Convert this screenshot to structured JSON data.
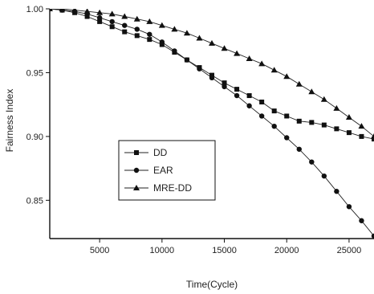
{
  "chart_data": {
    "type": "line",
    "title": "",
    "xlabel": "Time(Cycle)",
    "ylabel": "Fairness Index",
    "xlim": [
      1000,
      27000
    ],
    "ylim": [
      0.82,
      1.0
    ],
    "xticks": [
      5000,
      10000,
      15000,
      20000,
      25000
    ],
    "xtick_labels": [
      "5000",
      "10000",
      "15000",
      "20000",
      "25000"
    ],
    "yticks": [
      0.85,
      0.9,
      0.95,
      1.0
    ],
    "ytick_labels": [
      "0.85",
      "0.90",
      "0.95",
      "1.00"
    ],
    "grid": false,
    "legend_position": "center-left",
    "series": [
      {
        "name": "DD",
        "marker": "square",
        "x": [
          1000,
          2000,
          3000,
          4000,
          5000,
          6000,
          7000,
          8000,
          9000,
          10000,
          11000,
          12000,
          13000,
          14000,
          15000,
          16000,
          17000,
          18000,
          19000,
          20000,
          21000,
          22000,
          23000,
          24000,
          25000,
          26000,
          27000
        ],
        "y": [
          1.0,
          0.999,
          0.997,
          0.994,
          0.99,
          0.986,
          0.982,
          0.979,
          0.976,
          0.972,
          0.966,
          0.96,
          0.954,
          0.948,
          0.942,
          0.937,
          0.932,
          0.927,
          0.92,
          0.916,
          0.912,
          0.911,
          0.909,
          0.906,
          0.903,
          0.9,
          0.898
        ]
      },
      {
        "name": "EAR",
        "marker": "circle",
        "x": [
          1000,
          2000,
          3000,
          4000,
          5000,
          6000,
          7000,
          8000,
          9000,
          10000,
          11000,
          12000,
          13000,
          14000,
          15000,
          16000,
          17000,
          18000,
          19000,
          20000,
          21000,
          22000,
          23000,
          24000,
          25000,
          26000,
          27000
        ],
        "y": [
          1.0,
          0.999,
          0.998,
          0.996,
          0.993,
          0.99,
          0.987,
          0.984,
          0.98,
          0.974,
          0.967,
          0.96,
          0.953,
          0.946,
          0.939,
          0.932,
          0.924,
          0.916,
          0.908,
          0.899,
          0.89,
          0.88,
          0.869,
          0.857,
          0.845,
          0.834,
          0.822
        ]
      },
      {
        "name": "MRE-DD",
        "marker": "triangle",
        "x": [
          1000,
          2000,
          3000,
          4000,
          5000,
          6000,
          7000,
          8000,
          9000,
          10000,
          11000,
          12000,
          13000,
          14000,
          15000,
          16000,
          17000,
          18000,
          19000,
          20000,
          21000,
          22000,
          23000,
          24000,
          25000,
          26000,
          27000
        ],
        "y": [
          1.0,
          1.0,
          0.999,
          0.998,
          0.997,
          0.996,
          0.994,
          0.992,
          0.99,
          0.987,
          0.984,
          0.981,
          0.977,
          0.973,
          0.969,
          0.965,
          0.961,
          0.957,
          0.952,
          0.947,
          0.941,
          0.935,
          0.929,
          0.922,
          0.915,
          0.908,
          0.9
        ]
      }
    ]
  }
}
